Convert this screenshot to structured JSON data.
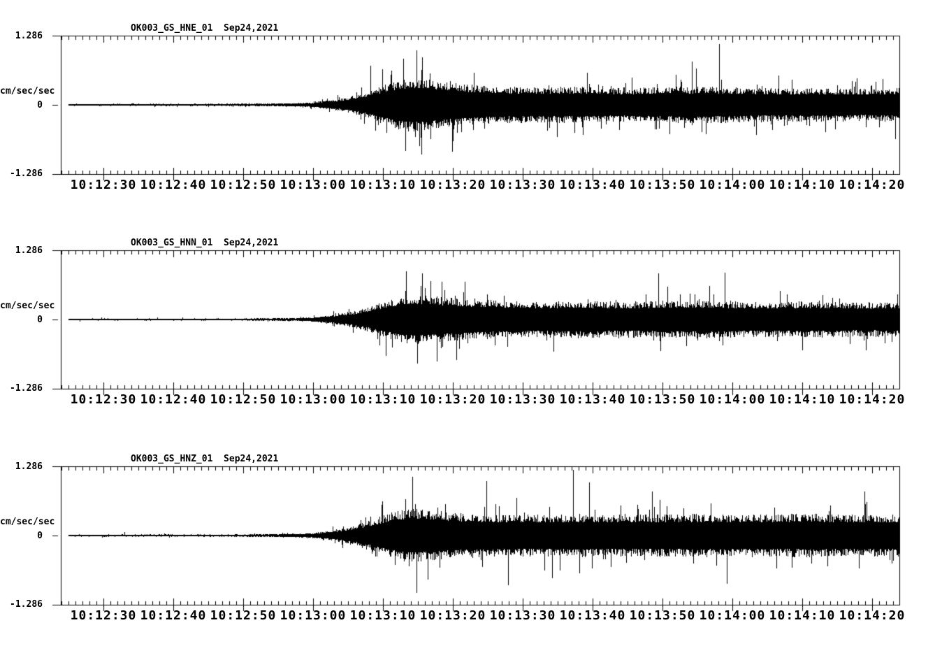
{
  "page": {
    "background": "#ffffff",
    "trace_color": "#000000"
  },
  "chart_data": [
    {
      "type": "line",
      "subtype": "seismogram",
      "station": "OK003_GS_HNE_01",
      "date": "Sep24,2021",
      "title": "OK003_GS_HNE_01  Sep24,2021",
      "ylabel": "cm/sec/sec",
      "y_tick_labels": [
        "1.286",
        "0",
        "-1.286"
      ],
      "ylim": [
        -1.286,
        1.286
      ],
      "x_tick_labels": [
        "10:12:30",
        "10:12:40",
        "10:12:50",
        "10:13:00",
        "10:13:10",
        "10:13:20",
        "10:13:30",
        "10:13:40",
        "10:13:50",
        "10:14:00",
        "10:14:10",
        "10:14:20"
      ],
      "x_window": {
        "start": "10:12:24",
        "end": "10:14:24"
      },
      "major_tick_interval_s": 10,
      "minor_tick_interval_s": 1,
      "grid": false,
      "legend": "none",
      "envelope": {
        "t_s": [
          0,
          24,
          30,
          34,
          36,
          38,
          40,
          42,
          44,
          46,
          48,
          50,
          52,
          55,
          58,
          62,
          68,
          74,
          80,
          86,
          92,
          96,
          102,
          108,
          114,
          120
        ],
        "amp": [
          0.02,
          0.022,
          0.028,
          0.034,
          0.05,
          0.08,
          0.12,
          0.17,
          0.27,
          0.37,
          0.46,
          0.52,
          0.5,
          0.44,
          0.4,
          0.36,
          0.34,
          0.35,
          0.33,
          0.34,
          0.36,
          0.34,
          0.32,
          0.33,
          0.31,
          0.32
        ]
      },
      "spikes": [
        {
          "t_s": 44.3,
          "amp": 0.75,
          "dir": 1
        },
        {
          "t_s": 49.3,
          "amp": 0.88,
          "dir": -1
        },
        {
          "t_s": 50.9,
          "amp": 1.05,
          "dir": 1
        },
        {
          "t_s": 51.6,
          "amp": 0.95,
          "dir": -1
        },
        {
          "t_s": 56.0,
          "amp": 0.9,
          "dir": -1
        },
        {
          "t_s": 90.3,
          "amp": 0.83,
          "dir": 1
        },
        {
          "t_s": 94.2,
          "amp": 1.17,
          "dir": 1
        }
      ],
      "seed": 101
    },
    {
      "type": "line",
      "subtype": "seismogram",
      "station": "OK003_GS_HNN_01",
      "date": "Sep24,2021",
      "title": "OK003_GS_HNN_01  Sep24,2021",
      "ylabel": "cm/sec/sec",
      "y_tick_labels": [
        "1.286",
        "0",
        "-1.286"
      ],
      "ylim": [
        -1.286,
        1.286
      ],
      "x_tick_labels": [
        "10:12:30",
        "10:12:40",
        "10:12:50",
        "10:13:00",
        "10:13:10",
        "10:13:20",
        "10:13:30",
        "10:13:40",
        "10:13:50",
        "10:14:00",
        "10:14:10",
        "10:14:20"
      ],
      "x_window": {
        "start": "10:12:24",
        "end": "10:14:24"
      },
      "major_tick_interval_s": 10,
      "minor_tick_interval_s": 1,
      "grid": false,
      "legend": "none",
      "envelope": {
        "t_s": [
          0,
          24,
          30,
          34,
          36,
          38,
          40,
          42,
          44,
          46,
          48,
          50,
          52,
          55,
          58,
          62,
          68,
          74,
          80,
          86,
          92,
          96,
          102,
          108,
          114,
          120
        ],
        "amp": [
          0.018,
          0.02,
          0.026,
          0.032,
          0.045,
          0.07,
          0.11,
          0.16,
          0.24,
          0.33,
          0.42,
          0.48,
          0.47,
          0.43,
          0.4,
          0.37,
          0.35,
          0.36,
          0.34,
          0.36,
          0.37,
          0.35,
          0.34,
          0.35,
          0.33,
          0.34
        ]
      },
      "spikes": [
        {
          "t_s": 46.5,
          "amp": 0.7,
          "dir": -1
        },
        {
          "t_s": 49.4,
          "amp": 0.92,
          "dir": 1
        },
        {
          "t_s": 51.0,
          "amp": 0.85,
          "dir": -1
        },
        {
          "t_s": 51.7,
          "amp": 0.88,
          "dir": 1
        },
        {
          "t_s": 56.6,
          "amp": 0.78,
          "dir": -1
        },
        {
          "t_s": 85.5,
          "amp": 0.88,
          "dir": 1
        },
        {
          "t_s": 95.0,
          "amp": 0.9,
          "dir": 1
        }
      ],
      "seed": 202
    },
    {
      "type": "line",
      "subtype": "seismogram",
      "station": "OK003_GS_HNZ_01",
      "date": "Sep24,2021",
      "title": "OK003_GS_HNZ_01  Sep24,2021",
      "ylabel": "cm/sec/sec",
      "y_tick_labels": [
        "1.286",
        "0",
        "-1.286"
      ],
      "ylim": [
        -1.286,
        1.286
      ],
      "x_tick_labels": [
        "10:12:30",
        "10:12:40",
        "10:12:50",
        "10:13:00",
        "10:13:10",
        "10:13:20",
        "10:13:30",
        "10:13:40",
        "10:13:50",
        "10:14:00",
        "10:14:10",
        "10:14:20"
      ],
      "x_window": {
        "start": "10:12:24",
        "end": "10:14:24"
      },
      "major_tick_interval_s": 10,
      "minor_tick_interval_s": 1,
      "grid": false,
      "legend": "none",
      "envelope": {
        "t_s": [
          0,
          24,
          30,
          34,
          36,
          38,
          40,
          42,
          44,
          46,
          48,
          50,
          52,
          55,
          58,
          62,
          68,
          74,
          80,
          86,
          92,
          96,
          102,
          108,
          114,
          120
        ],
        "amp": [
          0.02,
          0.022,
          0.03,
          0.036,
          0.05,
          0.08,
          0.13,
          0.19,
          0.28,
          0.38,
          0.47,
          0.52,
          0.5,
          0.46,
          0.43,
          0.41,
          0.4,
          0.42,
          0.4,
          0.41,
          0.42,
          0.4,
          0.41,
          0.42,
          0.4,
          0.41
        ]
      },
      "spikes": [
        {
          "t_s": 9.1,
          "amp": 0.07,
          "dir": 1
        },
        {
          "t_s": 50.3,
          "amp": 1.12,
          "dir": 1
        },
        {
          "t_s": 50.9,
          "amp": 1.1,
          "dir": -1
        },
        {
          "t_s": 60.9,
          "amp": 1.05,
          "dir": 1
        },
        {
          "t_s": 64.0,
          "amp": 0.95,
          "dir": -1
        },
        {
          "t_s": 73.3,
          "amp": 1.26,
          "dir": 1
        },
        {
          "t_s": 75.6,
          "amp": 1.02,
          "dir": 1
        },
        {
          "t_s": 95.3,
          "amp": 0.93,
          "dir": -1
        },
        {
          "t_s": 115.0,
          "amp": 0.85,
          "dir": 1
        }
      ],
      "seed": 303
    }
  ]
}
